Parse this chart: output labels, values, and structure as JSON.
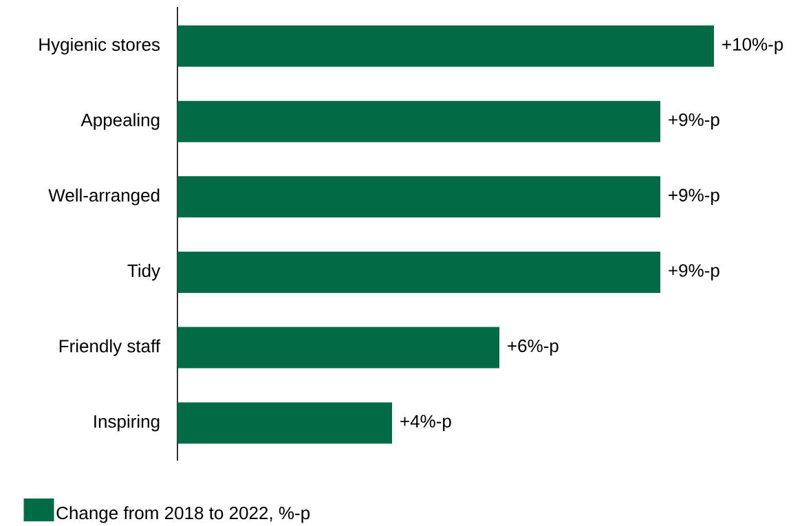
{
  "chart_data": {
    "type": "bar",
    "orientation": "horizontal",
    "categories": [
      "Hygienic stores",
      "Appealing",
      "Well-arranged",
      "Tidy",
      "Friendly staff",
      "Inspiring"
    ],
    "series": [
      {
        "name": "Change from 2018 to 2022, %-p",
        "color": "#006b45",
        "values": [
          10,
          9,
          9,
          9,
          6,
          4
        ],
        "value_labels": [
          "+10%-p",
          "+9%-p",
          "+9%-p",
          "+9%-p",
          "+6%-p",
          "+4%-p"
        ]
      }
    ],
    "legend": "bottom left"
  }
}
